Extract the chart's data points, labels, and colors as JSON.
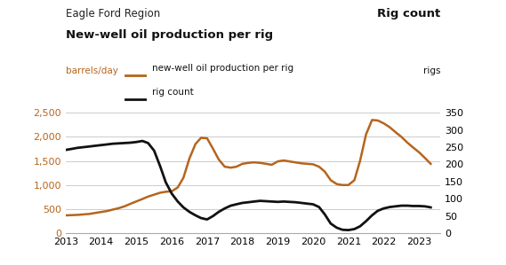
{
  "title_line1": "Eagle Ford Region",
  "title_line2": "New-well oil production per rig",
  "title_right": "Rig count",
  "ylabel_left": "barrels/day",
  "ylabel_right": "rigs",
  "legend_oil": "new-well oil production per rig",
  "legend_rig": "rig count",
  "oil_color": "#b5651d",
  "rig_color": "#111111",
  "oil_label_color": "#b5651d",
  "background_color": "#ffffff",
  "ylim_left": [
    0,
    2750
  ],
  "ylim_right": [
    0,
    385
  ],
  "yticks_left": [
    0,
    500,
    1000,
    1500,
    2000,
    2500
  ],
  "yticks_right": [
    0,
    50,
    100,
    150,
    200,
    250,
    300,
    350
  ],
  "oil_data": {
    "years": [
      2013.0,
      2013.17,
      2013.33,
      2013.5,
      2013.67,
      2013.83,
      2014.0,
      2014.17,
      2014.33,
      2014.5,
      2014.67,
      2014.83,
      2015.0,
      2015.17,
      2015.33,
      2015.5,
      2015.67,
      2015.83,
      2016.0,
      2016.17,
      2016.33,
      2016.5,
      2016.67,
      2016.83,
      2017.0,
      2017.17,
      2017.33,
      2017.5,
      2017.67,
      2017.83,
      2018.0,
      2018.17,
      2018.33,
      2018.5,
      2018.67,
      2018.83,
      2019.0,
      2019.17,
      2019.33,
      2019.5,
      2019.67,
      2019.83,
      2020.0,
      2020.17,
      2020.33,
      2020.5,
      2020.67,
      2020.83,
      2021.0,
      2021.17,
      2021.33,
      2021.5,
      2021.67,
      2021.83,
      2022.0,
      2022.17,
      2022.33,
      2022.5,
      2022.67,
      2022.83,
      2023.0,
      2023.17,
      2023.33
    ],
    "values": [
      370,
      375,
      380,
      390,
      400,
      420,
      440,
      460,
      490,
      520,
      560,
      610,
      660,
      710,
      760,
      800,
      840,
      860,
      870,
      950,
      1150,
      1550,
      1850,
      1980,
      1970,
      1750,
      1530,
      1380,
      1360,
      1380,
      1440,
      1460,
      1470,
      1460,
      1440,
      1420,
      1490,
      1510,
      1490,
      1470,
      1450,
      1440,
      1430,
      1380,
      1280,
      1100,
      1020,
      1000,
      1000,
      1100,
      1500,
      2050,
      2350,
      2340,
      2280,
      2200,
      2100,
      2000,
      1880,
      1780,
      1680,
      1560,
      1440
    ]
  },
  "rig_data": {
    "years": [
      2013.0,
      2013.17,
      2013.33,
      2013.5,
      2013.67,
      2013.83,
      2014.0,
      2014.17,
      2014.33,
      2014.5,
      2014.67,
      2014.83,
      2015.0,
      2015.17,
      2015.33,
      2015.5,
      2015.67,
      2015.83,
      2016.0,
      2016.17,
      2016.33,
      2016.5,
      2016.67,
      2016.83,
      2017.0,
      2017.17,
      2017.33,
      2017.5,
      2017.67,
      2017.83,
      2018.0,
      2018.17,
      2018.33,
      2018.5,
      2018.67,
      2018.83,
      2019.0,
      2019.17,
      2019.33,
      2019.5,
      2019.67,
      2019.83,
      2020.0,
      2020.17,
      2020.33,
      2020.5,
      2020.67,
      2020.83,
      2021.0,
      2021.17,
      2021.33,
      2021.5,
      2021.67,
      2021.83,
      2022.0,
      2022.17,
      2022.33,
      2022.5,
      2022.67,
      2022.83,
      2023.0,
      2023.17,
      2023.33
    ],
    "values": [
      242,
      245,
      248,
      250,
      252,
      254,
      256,
      258,
      260,
      261,
      262,
      263,
      265,
      268,
      262,
      240,
      195,
      148,
      115,
      92,
      75,
      62,
      52,
      44,
      40,
      50,
      62,
      72,
      80,
      84,
      88,
      90,
      92,
      94,
      93,
      92,
      91,
      92,
      91,
      90,
      88,
      86,
      84,
      76,
      55,
      28,
      16,
      10,
      9,
      12,
      20,
      35,
      52,
      65,
      72,
      76,
      78,
      80,
      80,
      79,
      79,
      78,
      75
    ]
  }
}
